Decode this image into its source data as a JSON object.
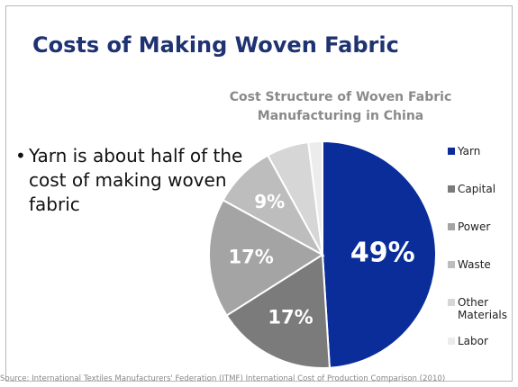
{
  "slide": {
    "title": "Costs of Making Woven Fabric",
    "bullet": "Yarn is about half of the cost of making woven fabric",
    "bullet_marker": "•",
    "source": "Source: International Textiles Manufacturers' Federation (ITMF) International Cost of Production Comparison (2010)"
  },
  "chart_data": {
    "type": "pie",
    "title": "Cost Structure of Woven Fabric Manufacturing in China",
    "categories": [
      "Yarn",
      "Capital",
      "Power",
      "Waste",
      "Other Materials",
      "Labor"
    ],
    "values": [
      49,
      17,
      17,
      9,
      6,
      2
    ],
    "data_labels": [
      "49%",
      "17%",
      "17%",
      "9%",
      "",
      ""
    ],
    "colors": [
      "#0a2d9a",
      "#7b7b7b",
      "#a4a4a4",
      "#bdbdbd",
      "#d6d6d6",
      "#ececec"
    ],
    "legend_position": "right"
  },
  "legend_lines": [
    [
      "Yarn"
    ],
    [
      "Capital"
    ],
    [
      "Power"
    ],
    [
      "Waste"
    ],
    [
      "Other",
      "Materials"
    ],
    [
      "Labor"
    ]
  ]
}
